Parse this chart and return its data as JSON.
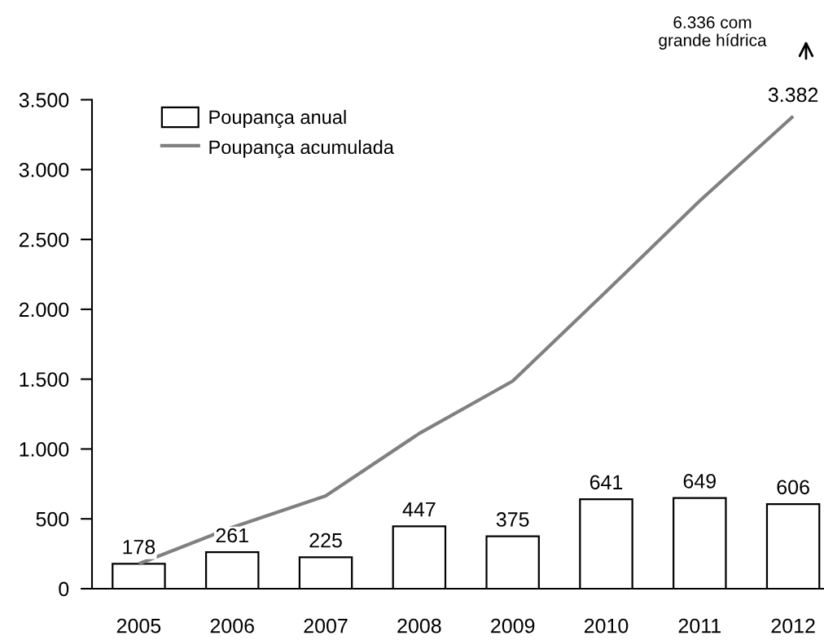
{
  "chart_data": {
    "type": "bar",
    "categories": [
      "2005",
      "2006",
      "2007",
      "2008",
      "2009",
      "2010",
      "2011",
      "2012"
    ],
    "series": [
      {
        "name": "Poupança anual",
        "color": "#ffffff",
        "values": [
          178,
          261,
          225,
          447,
          375,
          641,
          649,
          606
        ],
        "value_labels": [
          "178",
          "261",
          "225",
          "447",
          "375",
          "641",
          "649",
          "606"
        ]
      },
      {
        "name": "Poupança acumulada",
        "type": "line",
        "color": "#808080",
        "values": [
          178,
          439,
          664,
          1111,
          1486,
          2127,
          2776,
          3382
        ],
        "value_labels": [
          null,
          null,
          null,
          null,
          null,
          null,
          null,
          "3.382"
        ]
      }
    ],
    "ylim": [
      0,
      3500
    ],
    "yticks": [
      0,
      500,
      {
        "value": 1000,
        "label": "1.000"
      },
      {
        "value": 1500,
        "label": "1.500"
      },
      {
        "value": 2000,
        "label": "2.000"
      },
      {
        "value": 2500,
        "label": "2.500"
      },
      {
        "value": 3000,
        "label": "3.000"
      },
      {
        "value": 3500,
        "label": "3.500"
      }
    ],
    "grid": false,
    "legend": "top left",
    "marker": "none",
    "line_style": "solid",
    "annotations": [
      "6.336 com\ngrande hídrica"
    ]
  }
}
